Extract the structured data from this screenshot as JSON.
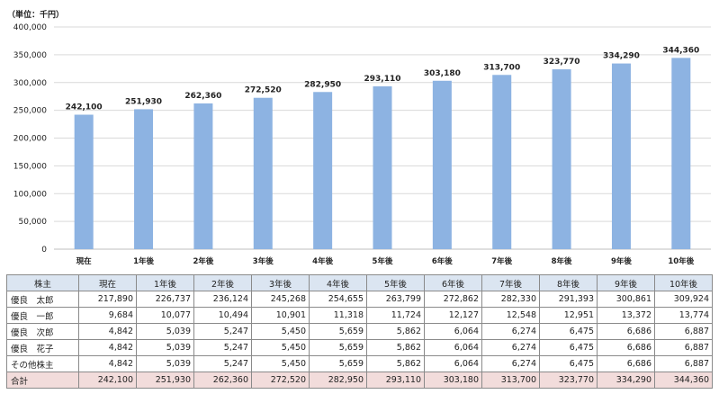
{
  "unit_label": "（単位：千円）",
  "chart_data": {
    "type": "bar",
    "categories": [
      "現在",
      "1年後",
      "2年後",
      "3年後",
      "4年後",
      "5年後",
      "6年後",
      "7年後",
      "8年後",
      "9年後",
      "10年後"
    ],
    "values": [
      242100,
      251930,
      262360,
      272520,
      282950,
      293110,
      303180,
      313700,
      323770,
      334290,
      344360
    ],
    "value_labels": [
      "242,100",
      "251,930",
      "262,360",
      "272,520",
      "282,950",
      "293,110",
      "303,180",
      "313,700",
      "323,770",
      "334,290",
      "344,360"
    ],
    "ylim": [
      0,
      400000
    ],
    "yticks": [
      {
        "v": 0,
        "label": "0"
      },
      {
        "v": 50000,
        "label": "50,000"
      },
      {
        "v": 100000,
        "label": "100,000"
      },
      {
        "v": 150000,
        "label": "150,000"
      },
      {
        "v": 200000,
        "label": "200,000"
      },
      {
        "v": 250000,
        "label": "250,000"
      },
      {
        "v": 300000,
        "label": "300,000"
      },
      {
        "v": 350000,
        "label": "350,000"
      },
      {
        "v": 400000,
        "label": "400,000"
      }
    ],
    "grid": true,
    "bar_color": "#8db3e2",
    "grid_color": "#d9d9d9"
  },
  "table": {
    "corner": "株主",
    "columns": [
      "現在",
      "1年後",
      "2年後",
      "3年後",
      "4年後",
      "5年後",
      "6年後",
      "7年後",
      "8年後",
      "9年後",
      "10年後"
    ],
    "rows": [
      {
        "name": "優良　太郎",
        "values": [
          "217,890",
          "226,737",
          "236,124",
          "245,268",
          "254,655",
          "263,799",
          "272,862",
          "282,330",
          "291,393",
          "300,861",
          "309,924"
        ]
      },
      {
        "name": "優良　一郎",
        "values": [
          "9,684",
          "10,077",
          "10,494",
          "10,901",
          "11,318",
          "11,724",
          "12,127",
          "12,548",
          "12,951",
          "13,372",
          "13,774"
        ]
      },
      {
        "name": "優良　次郎",
        "values": [
          "4,842",
          "5,039",
          "5,247",
          "5,450",
          "5,659",
          "5,862",
          "6,064",
          "6,274",
          "6,475",
          "6,686",
          "6,887"
        ]
      },
      {
        "name": "優良　花子",
        "values": [
          "4,842",
          "5,039",
          "5,247",
          "5,450",
          "5,659",
          "5,862",
          "6,064",
          "6,274",
          "6,475",
          "6,686",
          "6,887"
        ]
      },
      {
        "name": "その他株主",
        "values": [
          "4,842",
          "5,039",
          "5,247",
          "5,450",
          "5,659",
          "5,862",
          "6,064",
          "6,274",
          "6,475",
          "6,686",
          "6,887"
        ]
      }
    ],
    "total": {
      "name": "合計",
      "values": [
        "242,100",
        "251,930",
        "262,360",
        "272,520",
        "282,950",
        "293,110",
        "303,180",
        "313,700",
        "323,770",
        "334,290",
        "344,360"
      ]
    },
    "total_bg": "#f2dcdb",
    "header_bg": "#dbe5f1"
  }
}
